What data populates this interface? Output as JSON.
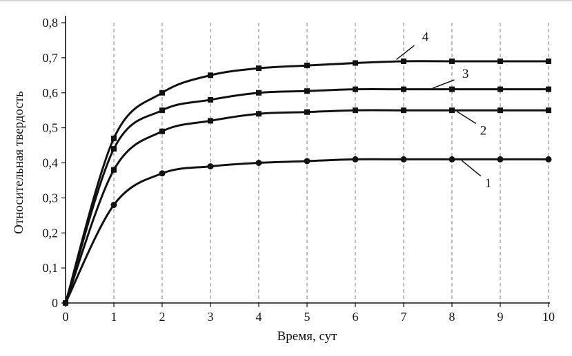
{
  "page": {
    "background": "#ffffff",
    "accent_color": "#111111",
    "grid_color": "#7d7d7d"
  },
  "chart_data": {
    "type": "line",
    "title": "",
    "xlabel": "Время, сут",
    "ylabel": "Относительная твердость",
    "xlim": [
      0,
      10
    ],
    "ylim": [
      0,
      0.8
    ],
    "x": [
      0,
      1,
      2,
      3,
      4,
      5,
      6,
      7,
      8,
      9,
      10
    ],
    "xticks": [
      "0",
      "1",
      "2",
      "3",
      "4",
      "5",
      "6",
      "7",
      "8",
      "9",
      "10"
    ],
    "yticks": [
      "0",
      "0,1",
      "0,2",
      "0,3",
      "0,4",
      "0,5",
      "0,6",
      "0,7",
      "0,8"
    ],
    "grid": "vertical-dashed",
    "legend_position": "none",
    "series": [
      {
        "name": "1",
        "marker": "circle",
        "color": "#111111",
        "values": [
          0,
          0.28,
          0.37,
          0.39,
          0.4,
          0.405,
          0.41,
          0.41,
          0.41,
          0.41,
          0.41
        ]
      },
      {
        "name": "2",
        "marker": "square",
        "color": "#111111",
        "values": [
          0,
          0.38,
          0.49,
          0.52,
          0.54,
          0.545,
          0.55,
          0.55,
          0.55,
          0.55,
          0.55
        ]
      },
      {
        "name": "3",
        "marker": "square",
        "color": "#111111",
        "values": [
          0,
          0.44,
          0.55,
          0.58,
          0.6,
          0.605,
          0.61,
          0.61,
          0.61,
          0.61,
          0.61
        ]
      },
      {
        "name": "4",
        "marker": "square",
        "color": "#111111",
        "values": [
          0,
          0.47,
          0.6,
          0.65,
          0.67,
          0.678,
          0.685,
          0.69,
          0.69,
          0.69,
          0.69
        ]
      }
    ],
    "annotations": [
      {
        "label": "4",
        "text_x": 7.45,
        "text_y": 0.76,
        "line": [
          [
            7.22,
            0.735
          ],
          [
            6.85,
            0.695
          ]
        ]
      },
      {
        "label": "3",
        "text_x": 8.28,
        "text_y": 0.655,
        "line": [
          [
            8.05,
            0.637
          ],
          [
            7.6,
            0.613
          ]
        ]
      },
      {
        "label": "2",
        "text_x": 8.65,
        "text_y": 0.492,
        "line": [
          [
            8.5,
            0.512
          ],
          [
            8.1,
            0.547
          ]
        ]
      },
      {
        "label": "1",
        "text_x": 8.75,
        "text_y": 0.342,
        "line": [
          [
            8.6,
            0.362
          ],
          [
            8.2,
            0.407
          ]
        ]
      }
    ]
  }
}
